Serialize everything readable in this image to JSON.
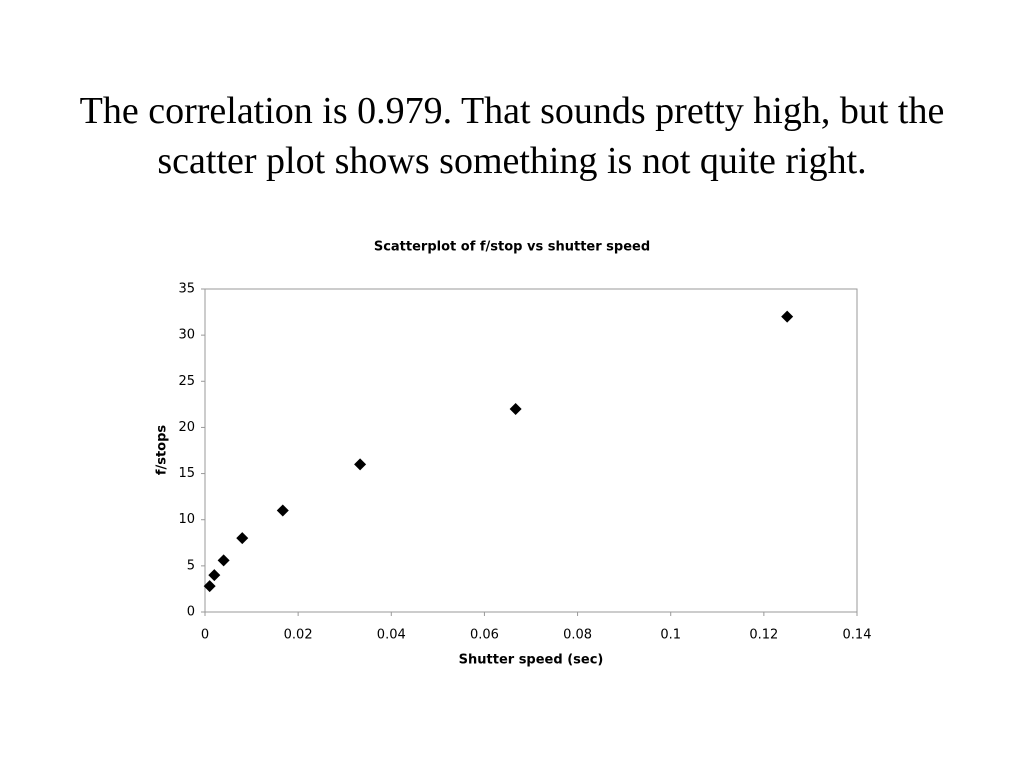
{
  "heading": "The correlation is 0.979. That sounds pretty high, but the scatter plot shows something is not quite right.",
  "chart_data": {
    "type": "scatter",
    "title": "Scatterplot of f/stop vs shutter speed",
    "x_label": "Shutter speed (sec)",
    "y_label": "f/stops",
    "series": [
      {
        "name": "f/stop",
        "color": "#000000",
        "x": [
          0.001,
          0.002,
          0.004,
          0.008,
          0.0167,
          0.0333,
          0.0667,
          0.125
        ],
        "values": [
          2.8,
          4,
          5.6,
          8,
          11,
          16,
          22,
          32
        ]
      }
    ],
    "xlim": [
      0,
      0.14
    ],
    "xticks": [
      0,
      0.02,
      0.04,
      0.06,
      0.08,
      0.1,
      0.12,
      0.14
    ],
    "ylim": [
      0,
      35
    ],
    "yticks": [
      0,
      5,
      10,
      15,
      20,
      25,
      30,
      35
    ],
    "grid": false,
    "legend": false
  }
}
